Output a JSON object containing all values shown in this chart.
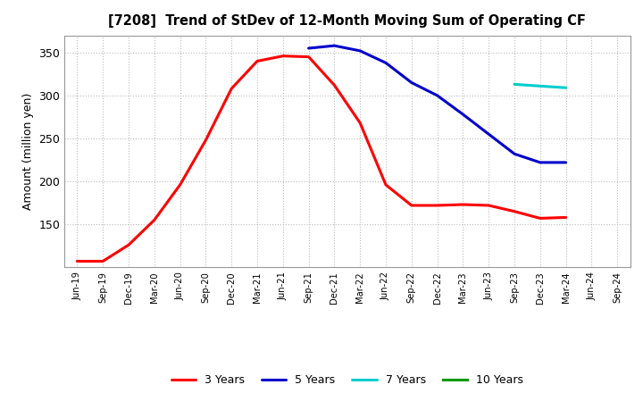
{
  "title": "[7208]  Trend of StDev of 12-Month Moving Sum of Operating CF",
  "ylabel": "Amount (million yen)",
  "ylim": [
    100,
    370
  ],
  "yticks": [
    150,
    200,
    250,
    300,
    350
  ],
  "background_color": "#ffffff",
  "grid_color": "#bbbbbb",
  "series": {
    "3 Years": {
      "color": "#ff0000",
      "x": [
        "Jun-19",
        "Sep-19",
        "Dec-19",
        "Mar-20",
        "Jun-20",
        "Sep-20",
        "Dec-20",
        "Mar-21",
        "Jun-21",
        "Sep-21",
        "Dec-21",
        "Mar-22",
        "Jun-22",
        "Sep-22",
        "Dec-22",
        "Mar-23",
        "Jun-23",
        "Sep-23",
        "Dec-23",
        "Mar-24"
      ],
      "y": [
        107,
        107,
        126,
        155,
        196,
        248,
        308,
        340,
        346,
        345,
        312,
        268,
        196,
        172,
        172,
        173,
        172,
        165,
        157,
        158
      ]
    },
    "5 Years": {
      "color": "#0000cc",
      "x": [
        "Sep-21",
        "Dec-21",
        "Mar-22",
        "Jun-22",
        "Sep-22",
        "Dec-22",
        "Mar-23",
        "Jun-23",
        "Sep-23",
        "Dec-23",
        "Mar-24"
      ],
      "y": [
        355,
        358,
        352,
        338,
        315,
        300,
        278,
        255,
        232,
        222,
        222
      ]
    },
    "7 Years": {
      "color": "#00cccc",
      "x": [
        "Sep-23",
        "Dec-23",
        "Mar-24"
      ],
      "y": [
        313,
        311,
        309
      ]
    },
    "10 Years": {
      "color": "#009900",
      "x": [],
      "y": []
    }
  },
  "x_labels": [
    "Jun-19",
    "Sep-19",
    "Dec-19",
    "Mar-20",
    "Jun-20",
    "Sep-20",
    "Dec-20",
    "Mar-21",
    "Jun-21",
    "Sep-21",
    "Dec-21",
    "Mar-22",
    "Jun-22",
    "Sep-22",
    "Dec-22",
    "Mar-23",
    "Jun-23",
    "Sep-23",
    "Dec-23",
    "Mar-24",
    "Jun-24",
    "Sep-24"
  ],
  "legend_order": [
    "3 Years",
    "5 Years",
    "7 Years",
    "10 Years"
  ],
  "line_width": 2.2
}
